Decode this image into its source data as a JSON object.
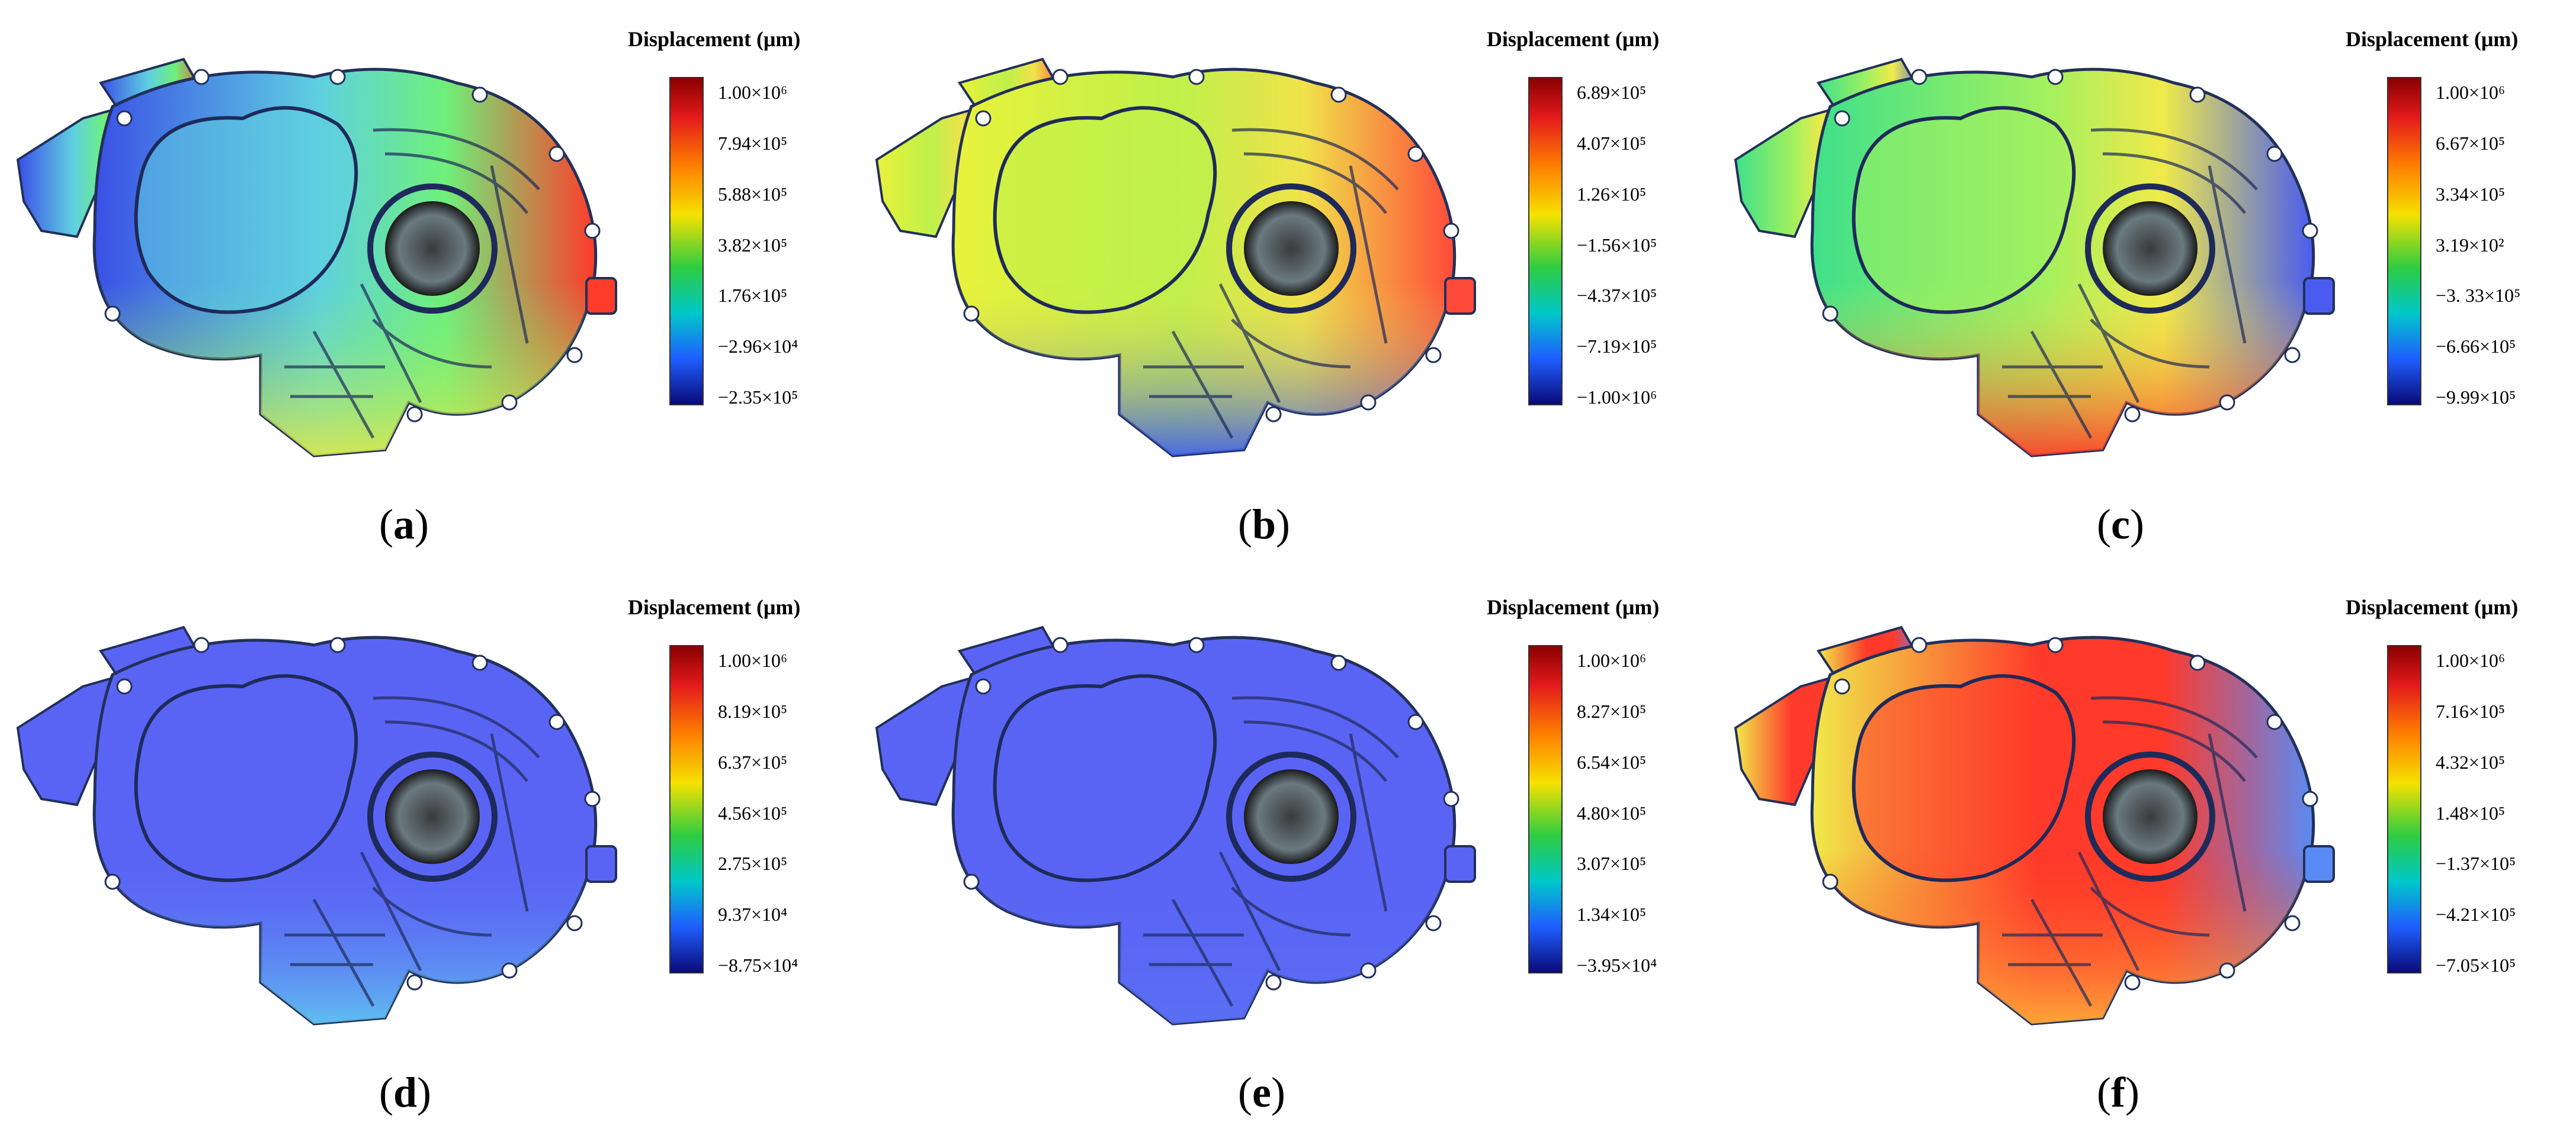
{
  "panels": [
    {
      "label_letter": "a",
      "legend_title": "Displacement (μm)",
      "ticks": [
        "1.00×10⁶",
        "7.94×10⁵",
        "5.88×10⁵",
        "3.82×10⁵",
        "1.76×10⁵",
        "−2.96×10⁴",
        "−2.35×10⁵"
      ],
      "colors": {
        "left": "#3a4fe6",
        "hub": "#5fd0e0",
        "mid": "#6ef07a",
        "right": "#ff3b2a",
        "low": "#e0e84a"
      }
    },
    {
      "label_letter": "b",
      "legend_title": "Displacement (μm)",
      "ticks": [
        "6.89×10⁵",
        "4.07×10⁵",
        "1.26×10⁵",
        "−1.56×10⁵",
        "−4.37×10⁵",
        "−7.19×10⁵",
        "−1.00×10⁶"
      ],
      "colors": {
        "left": "#e8f23a",
        "hub": "#bff04a",
        "mid": "#f0e24a",
        "right": "#ff4a3a",
        "low": "#3b5cf0"
      }
    },
    {
      "label_letter": "c",
      "legend_title": "Displacement (μm)",
      "ticks": [
        "1.00×10⁶",
        "6.67×10⁵",
        "3.34×10⁵",
        "3.19×10²",
        "−3. 33×10⁵",
        "−6.66×10⁵",
        "−9.99×10⁵"
      ],
      "colors": {
        "left": "#3ee08a",
        "hub": "#9ef060",
        "mid": "#f0ea4a",
        "right": "#4a5cf0",
        "low": "#ff3a2a"
      }
    },
    {
      "label_letter": "d",
      "legend_title": "Displacement (μm)",
      "ticks": [
        "1.00×10⁶",
        "8.19×10⁵",
        "6.37×10⁵",
        "4.56×10⁵",
        "2.75×10⁵",
        "9.37×10⁴",
        "−8.75×10⁴"
      ],
      "colors": {
        "left": "#5a64f4",
        "hub": "#5a64f4",
        "mid": "#5a64f4",
        "right": "#5a64f4",
        "low": "#60c8f0"
      }
    },
    {
      "label_letter": "e",
      "legend_title": "Displacement (μm)",
      "ticks": [
        "1.00×10⁶",
        "8.27×10⁵",
        "6.54×10⁵",
        "4.80×10⁵",
        "3.07×10⁵",
        "1.34×10⁵",
        "−3.95×10⁴"
      ],
      "colors": {
        "left": "#5a64f4",
        "hub": "#5a64f4",
        "mid": "#5a64f4",
        "right": "#5a64f4",
        "low": "#5a70f4"
      }
    },
    {
      "label_letter": "f",
      "legend_title": "Displacement (μm)",
      "ticks": [
        "1.00×10⁶",
        "7.16×10⁵",
        "4.32×10⁵",
        "1.48×10⁵",
        "−1.37×10⁵",
        "−4.21×10⁵",
        "−7.05×10⁵"
      ],
      "colors": {
        "left": "#f0ea4a",
        "hub": "#ff3a2a",
        "mid": "#ff3a2a",
        "right": "#5a8af4",
        "low": "#ffb03a"
      }
    }
  ]
}
